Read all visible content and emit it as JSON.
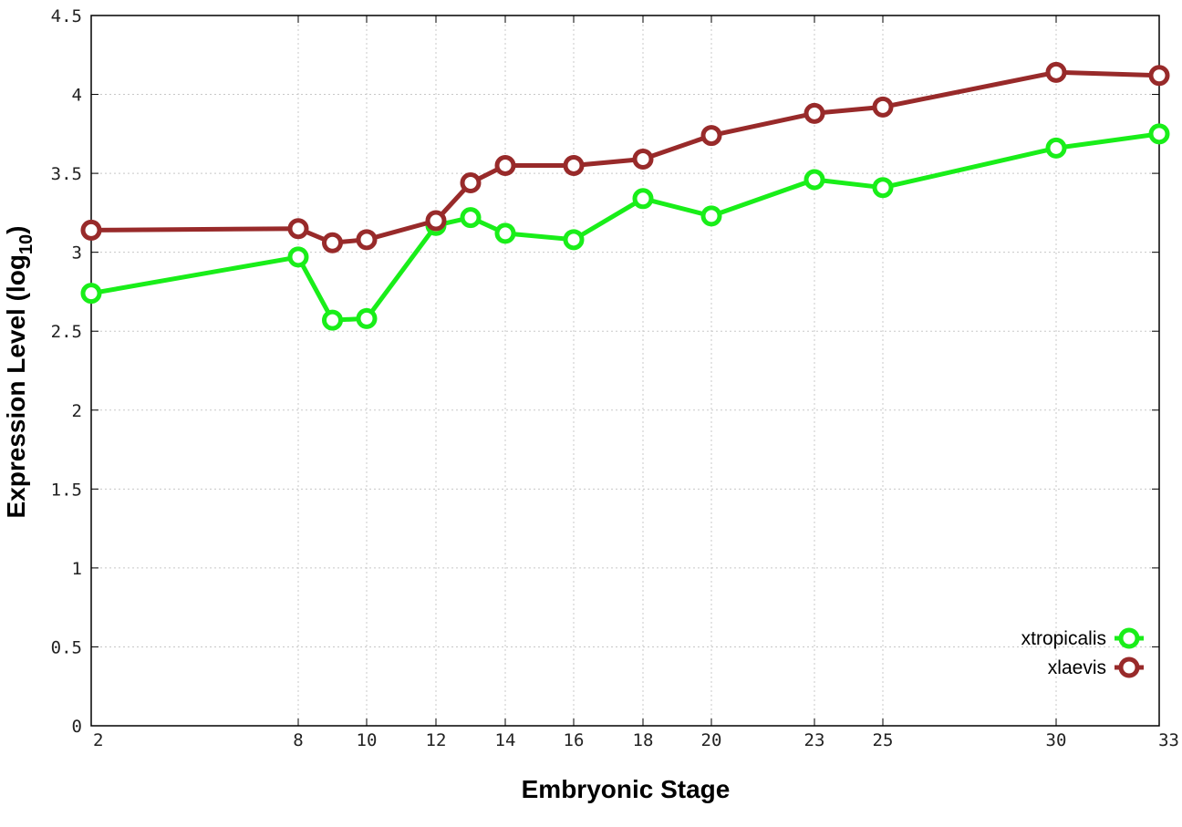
{
  "chart_data": {
    "type": "line",
    "xlabel": "Embryonic Stage",
    "ylabel": "Expression Level (log",
    "ylabel_subscript": "10",
    "ylabel_suffix": ")",
    "x_ticks": [
      "2",
      "8",
      "10",
      "12",
      "14",
      "16",
      "18",
      "20",
      "23",
      "25",
      "30",
      "33"
    ],
    "y_ticks": [
      "0",
      "0.5",
      "1",
      "1.5",
      "2",
      "2.5",
      "3",
      "3.5",
      "4",
      "4.5"
    ],
    "ylim": [
      0,
      4.5
    ],
    "grid": true,
    "legend_position": "bottom-right",
    "series": [
      {
        "name": "xtropicalis",
        "color": "#19ee19",
        "points": [
          {
            "x": 2,
            "y": 2.74
          },
          {
            "x": 8,
            "y": 2.97
          },
          {
            "x": 9,
            "y": 2.57
          },
          {
            "x": 10,
            "y": 2.58
          },
          {
            "x": 12,
            "y": 3.17
          },
          {
            "x": 13,
            "y": 3.22
          },
          {
            "x": 14,
            "y": 3.12
          },
          {
            "x": 16,
            "y": 3.08
          },
          {
            "x": 18,
            "y": 3.34
          },
          {
            "x": 20,
            "y": 3.23
          },
          {
            "x": 23,
            "y": 3.46
          },
          {
            "x": 25,
            "y": 3.41
          },
          {
            "x": 30,
            "y": 3.66
          },
          {
            "x": 33,
            "y": 3.75
          }
        ]
      },
      {
        "name": "xlaevis",
        "color": "#982a2a",
        "points": [
          {
            "x": 2,
            "y": 3.14
          },
          {
            "x": 8,
            "y": 3.15
          },
          {
            "x": 9,
            "y": 3.06
          },
          {
            "x": 10,
            "y": 3.08
          },
          {
            "x": 12,
            "y": 3.2
          },
          {
            "x": 13,
            "y": 3.44
          },
          {
            "x": 14,
            "y": 3.55
          },
          {
            "x": 16,
            "y": 3.55
          },
          {
            "x": 18,
            "y": 3.59
          },
          {
            "x": 20,
            "y": 3.74
          },
          {
            "x": 23,
            "y": 3.88
          },
          {
            "x": 25,
            "y": 3.92
          },
          {
            "x": 30,
            "y": 4.14
          },
          {
            "x": 33,
            "y": 4.12
          }
        ]
      }
    ]
  }
}
